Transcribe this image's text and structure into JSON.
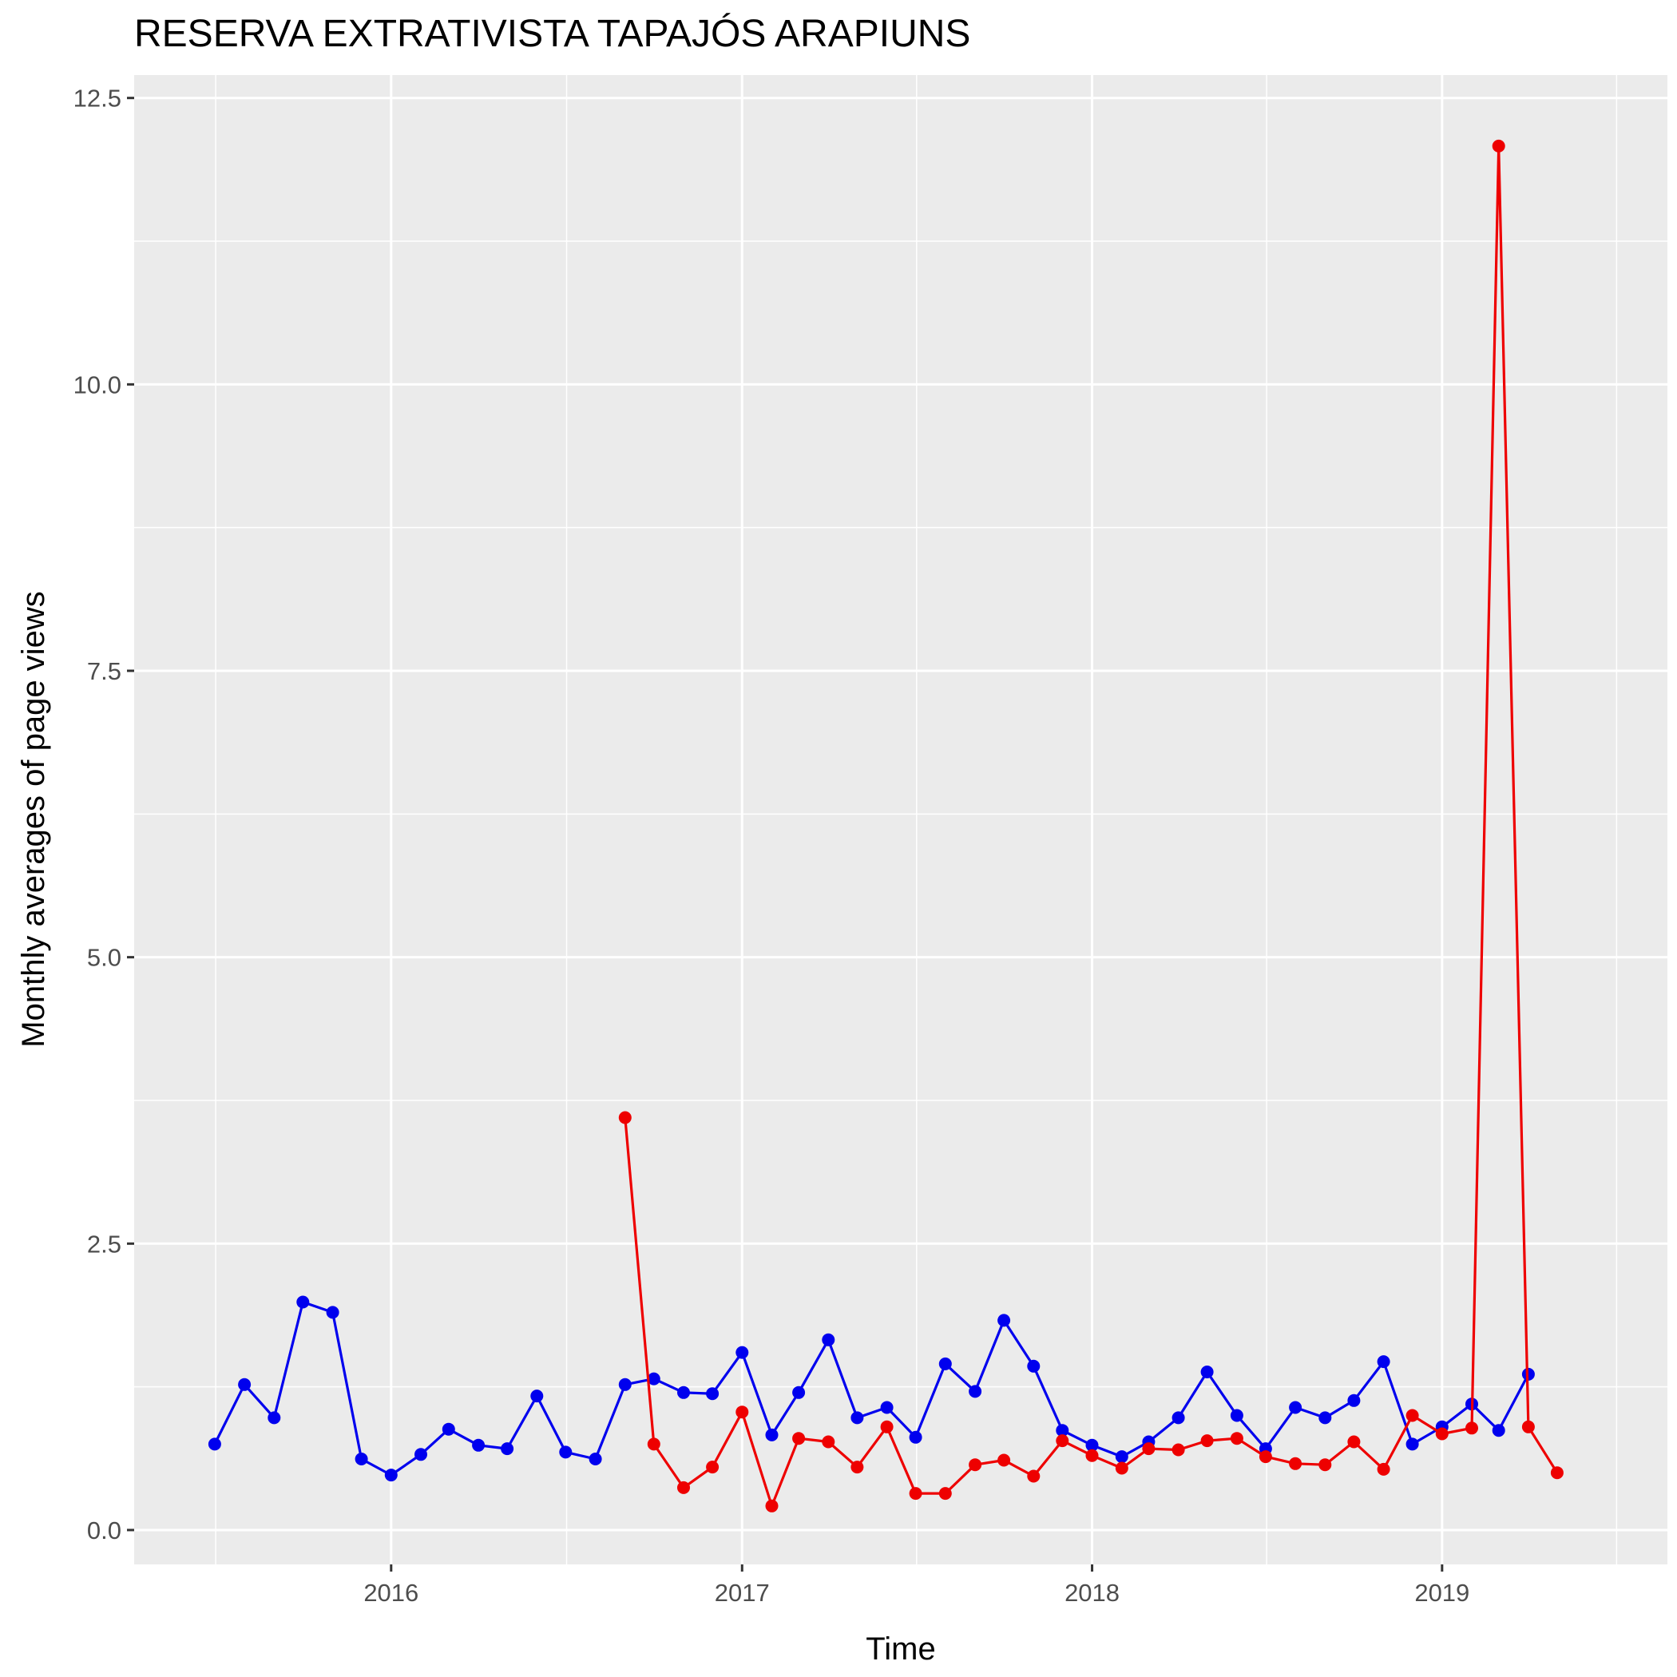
{
  "chart_data": {
    "type": "line",
    "title": "RESERVA EXTRATIVISTA TAPAJÓS ARAPIUNS",
    "xlabel": "Time",
    "ylabel": "Monthly averages of page views",
    "x_ticks": [
      "2016",
      "2017",
      "2018",
      "2019"
    ],
    "y_ticks": [
      "0.0",
      "2.5",
      "5.0",
      "7.5",
      "10.0",
      "12.5"
    ],
    "ylim": [
      -0.3,
      12.7
    ],
    "xlim": [
      "2015-04-08",
      "2019-08-24"
    ],
    "grid": true,
    "legend": "none",
    "series": [
      {
        "color": "#0000ee",
        "points": [
          [
            "2015-07-01",
            0.75
          ],
          [
            "2015-08-01",
            1.27
          ],
          [
            "2015-09-01",
            0.98
          ],
          [
            "2015-10-01",
            1.99
          ],
          [
            "2015-11-01",
            1.9
          ],
          [
            "2015-12-01",
            0.62
          ],
          [
            "2016-01-01",
            0.48
          ],
          [
            "2016-02-01",
            0.66
          ],
          [
            "2016-03-01",
            0.88
          ],
          [
            "2016-04-01",
            0.74
          ],
          [
            "2016-05-01",
            0.71
          ],
          [
            "2016-06-01",
            1.17
          ],
          [
            "2016-07-01",
            0.68
          ],
          [
            "2016-08-01",
            0.62
          ],
          [
            "2016-09-01",
            1.27
          ],
          [
            "2016-10-01",
            1.32
          ],
          [
            "2016-11-01",
            1.2
          ],
          [
            "2016-12-01",
            1.19
          ],
          [
            "2017-01-01",
            1.55
          ],
          [
            "2017-02-01",
            0.83
          ],
          [
            "2017-03-01",
            1.2
          ],
          [
            "2017-04-01",
            1.66
          ],
          [
            "2017-05-01",
            0.98
          ],
          [
            "2017-06-01",
            1.07
          ],
          [
            "2017-07-01",
            0.81
          ],
          [
            "2017-08-01",
            1.45
          ],
          [
            "2017-09-01",
            1.21
          ],
          [
            "2017-10-01",
            1.83
          ],
          [
            "2017-11-01",
            1.43
          ],
          [
            "2017-12-01",
            0.87
          ],
          [
            "2018-01-01",
            0.74
          ],
          [
            "2018-02-01",
            0.64
          ],
          [
            "2018-03-01",
            0.77
          ],
          [
            "2018-04-01",
            0.98
          ],
          [
            "2018-05-01",
            1.38
          ],
          [
            "2018-06-01",
            1.0
          ],
          [
            "2018-07-01",
            0.71
          ],
          [
            "2018-08-01",
            1.07
          ],
          [
            "2018-09-01",
            0.98
          ],
          [
            "2018-10-01",
            1.13
          ],
          [
            "2018-11-01",
            1.47
          ],
          [
            "2018-12-01",
            0.75
          ],
          [
            "2019-01-01",
            0.9
          ],
          [
            "2019-02-01",
            1.1
          ],
          [
            "2019-03-01",
            0.87
          ],
          [
            "2019-04-01",
            1.36
          ]
        ]
      },
      {
        "color": "#ee0000",
        "points": [
          [
            "2016-09-01",
            3.6
          ],
          [
            "2016-10-01",
            0.75
          ],
          [
            "2016-11-01",
            0.37
          ],
          [
            "2016-12-01",
            0.55
          ],
          [
            "2017-01-01",
            1.03
          ],
          [
            "2017-02-01",
            0.21
          ],
          [
            "2017-03-01",
            0.8
          ],
          [
            "2017-04-01",
            0.77
          ],
          [
            "2017-05-01",
            0.55
          ],
          [
            "2017-06-01",
            0.9
          ],
          [
            "2017-07-01",
            0.32
          ],
          [
            "2017-08-01",
            0.32
          ],
          [
            "2017-09-01",
            0.57
          ],
          [
            "2017-10-01",
            0.61
          ],
          [
            "2017-11-01",
            0.47
          ],
          [
            "2017-12-01",
            0.78
          ],
          [
            "2018-01-01",
            0.65
          ],
          [
            "2018-02-01",
            0.54
          ],
          [
            "2018-03-01",
            0.71
          ],
          [
            "2018-04-01",
            0.7
          ],
          [
            "2018-05-01",
            0.78
          ],
          [
            "2018-06-01",
            0.8
          ],
          [
            "2018-07-01",
            0.64
          ],
          [
            "2018-08-01",
            0.58
          ],
          [
            "2018-09-01",
            0.57
          ],
          [
            "2018-10-01",
            0.77
          ],
          [
            "2018-11-01",
            0.53
          ],
          [
            "2018-12-01",
            1.0
          ],
          [
            "2019-01-01",
            0.84
          ],
          [
            "2019-02-01",
            0.89
          ],
          [
            "2019-03-01",
            12.08
          ],
          [
            "2019-04-01",
            0.9
          ],
          [
            "2019-05-01",
            0.5
          ]
        ]
      }
    ]
  }
}
